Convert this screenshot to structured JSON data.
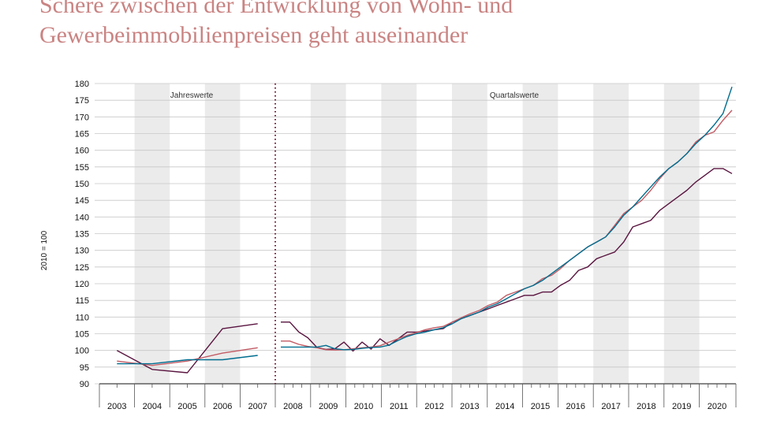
{
  "title_lines": [
    "Schere zwischen der Entwicklung von Wohn- und",
    "Gewerbeimmobilienpreisen geht auseinander"
  ],
  "colors": {
    "title": "#c98483",
    "band": "#ebebeb",
    "divider": "#6b1a3a",
    "series": [
      "#006d8f",
      "#c25b64",
      "#5a1540"
    ]
  },
  "chart_data": {
    "type": "line",
    "ylabel": "2010 = 100",
    "ylim": [
      90,
      180
    ],
    "yticks": [
      90,
      95,
      100,
      105,
      110,
      115,
      120,
      125,
      130,
      135,
      140,
      145,
      150,
      155,
      160,
      165,
      170,
      175,
      180
    ],
    "section_labels": {
      "annual": "Jahreswerte",
      "quarterly": "Quartalswerte"
    },
    "annual": {
      "categories": [
        "2003",
        "2004",
        "2005",
        "2006",
        "2007"
      ],
      "series": [
        {
          "values": [
            96,
            96,
            97.2,
            97.2,
            98.5
          ]
        },
        {
          "values": [
            96.8,
            95.5,
            96.8,
            99.2,
            100.8
          ]
        },
        {
          "values": [
            100,
            94.3,
            93.3,
            106.5,
            108
          ]
        }
      ]
    },
    "quarterly": {
      "years": [
        "2008",
        "2009",
        "2010",
        "2011",
        "2012",
        "2013",
        "2014",
        "2015",
        "2016",
        "2017",
        "2018",
        "2019",
        "2020"
      ],
      "series": [
        {
          "values": [
            101,
            101,
            101,
            101,
            101,
            101.5,
            100.5,
            100.2,
            100.3,
            100.6,
            100.9,
            101,
            101.6,
            103,
            104.2,
            105,
            105.5,
            106.2,
            106.8,
            108,
            109.5,
            110.5,
            111.5,
            113,
            114,
            115.5,
            117,
            118.5,
            119.5,
            121,
            123,
            125,
            127,
            129,
            131,
            132.5,
            134,
            137,
            140.5,
            143,
            146,
            149,
            152,
            154.5,
            156.5,
            159,
            162,
            164.5,
            167.5,
            171,
            179
          ]
        },
        {
          "values": [
            102.8,
            102.8,
            101.8,
            101.2,
            100.8,
            100.2,
            100.1,
            100.2,
            100.5,
            100.8,
            101,
            101.4,
            102.5,
            103.5,
            104.5,
            105.3,
            106.2,
            106.8,
            107.2,
            108.5,
            109.8,
            111,
            112,
            113.5,
            114.5,
            116.5,
            117.5,
            118.5,
            119.5,
            121.5,
            122.5,
            124.5,
            127,
            129,
            131,
            132.5,
            134,
            137.5,
            141,
            143,
            145,
            148,
            151.5,
            154.5,
            156.5,
            159,
            162.5,
            164.5,
            165.5,
            169,
            172
          ]
        },
        {
          "values": [
            108.5,
            108.5,
            105.5,
            103.8,
            100.9,
            100.3,
            100.5,
            102.5,
            99.8,
            102.5,
            100.4,
            103.5,
            101.5,
            103.5,
            105.5,
            105.5,
            105.8,
            106.2,
            106.5,
            108.5,
            109.5,
            110.5,
            111.5,
            112.5,
            113.5,
            114.5,
            115.5,
            116.5,
            116.5,
            117.5,
            117.5,
            119.5,
            121,
            124,
            125,
            127.5,
            128.5,
            129.5,
            132.5,
            137,
            138,
            139,
            142,
            144,
            146,
            148,
            150.5,
            152.5,
            154.5,
            154.5,
            153
          ]
        }
      ]
    }
  }
}
